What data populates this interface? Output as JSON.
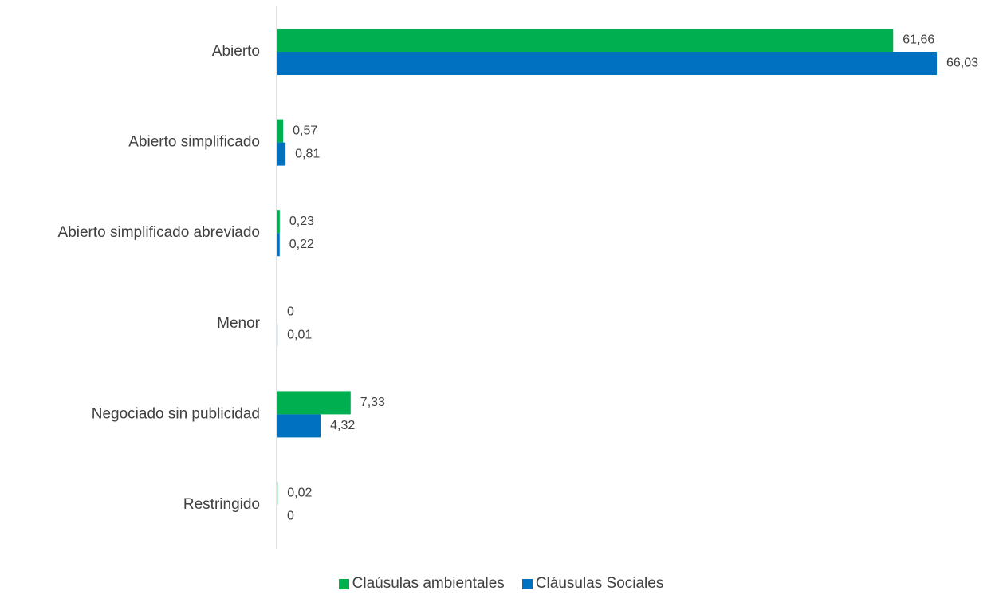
{
  "chart_data": {
    "type": "bar",
    "orientation": "horizontal",
    "categories": [
      "Abierto",
      "Abierto simplificado",
      "Abierto simplificado abreviado",
      "Menor",
      "Negociado sin publicidad",
      "Restringido"
    ],
    "series": [
      {
        "name": "Claúsulas ambientales",
        "color": "#00b050",
        "values": [
          61.66,
          0.57,
          0.23,
          0,
          7.33,
          0.02
        ],
        "labels": [
          "61,66",
          "0,57",
          "0,23",
          "0",
          "7,33",
          "0,02"
        ]
      },
      {
        "name": "Cláusulas Sociales",
        "color": "#0070c0",
        "values": [
          66.03,
          0.81,
          0.22,
          0.01,
          4.32,
          0
        ],
        "labels": [
          "66,03",
          "0,81",
          "0,22",
          "0,01",
          "4,32",
          "0"
        ]
      }
    ],
    "xlim": [
      0,
      66.03
    ],
    "grid": false,
    "legend_position": "bottom"
  }
}
